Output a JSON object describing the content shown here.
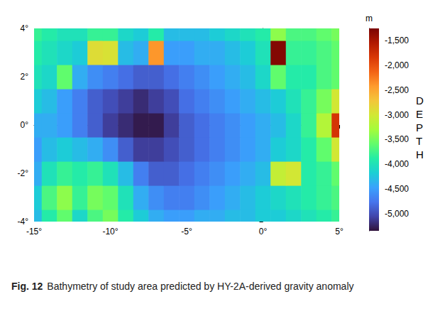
{
  "chart_data": {
    "type": "heatmap",
    "grid": false,
    "x": [
      -15,
      -14,
      -13,
      -12,
      -11,
      -10,
      -9,
      -8,
      -7,
      -6,
      -5,
      -4,
      -3,
      -2,
      -1,
      0,
      1,
      2,
      3,
      4,
      5
    ],
    "y": [
      -4,
      -3,
      -2,
      -1,
      0,
      1,
      2,
      3,
      4
    ],
    "depth": [
      [
        -4300,
        -3900,
        -3600,
        -4100,
        -3700,
        -3500,
        -3900,
        -4200,
        -4400,
        -4500,
        -4500,
        -4400,
        -4400,
        -4300,
        -4300,
        -4200,
        -4200,
        -4100,
        -4000,
        -3900,
        -3800
      ],
      [
        -4200,
        -3700,
        -3400,
        -3800,
        -3500,
        -3600,
        -4000,
        -4400,
        -4600,
        -4700,
        -4700,
        -4600,
        -4500,
        -4400,
        -4300,
        -4200,
        -4100,
        -4000,
        -3900,
        -3800,
        -3700
      ],
      [
        -4400,
        -4000,
        -3800,
        -3900,
        -3800,
        -4000,
        -4300,
        -4700,
        -4900,
        -4900,
        -4800,
        -4700,
        -4600,
        -4500,
        -4400,
        -4300,
        -3100,
        -3000,
        -3900,
        -3800,
        -3600
      ],
      [
        -4500,
        -4300,
        -4200,
        -4300,
        -4400,
        -4600,
        -4900,
        -5100,
        -5100,
        -5000,
        -4900,
        -4800,
        -4700,
        -4600,
        -4500,
        -4400,
        -4200,
        -4100,
        -3900,
        -3600,
        -3000
      ],
      [
        -4400,
        -4400,
        -4500,
        -4700,
        -4900,
        -5100,
        -5200,
        -5300,
        -5300,
        -5100,
        -4900,
        -4800,
        -4700,
        -4600,
        -4500,
        -4400,
        -4300,
        -4100,
        -3800,
        -3200,
        -1800
      ],
      [
        -4200,
        -4300,
        -4500,
        -4700,
        -4900,
        -5000,
        -5100,
        -5200,
        -5100,
        -5000,
        -4800,
        -4700,
        -4600,
        -4500,
        -4400,
        -4300,
        -4200,
        -4000,
        -3800,
        -3500,
        -3000
      ],
      [
        -4000,
        -4100,
        -3600,
        -4400,
        -4600,
        -4700,
        -4800,
        -4900,
        -4900,
        -4800,
        -4700,
        -4600,
        -4500,
        -4400,
        -4300,
        -4100,
        -3600,
        -3900,
        -3900,
        -3700,
        -3600
      ],
      [
        -3900,
        -4000,
        -4100,
        -4200,
        -2900,
        -2950,
        -4300,
        -4400,
        -2400,
        -4500,
        -4500,
        -4400,
        -4400,
        -4300,
        -4200,
        -4000,
        -1300,
        -3800,
        -3800,
        -3700,
        -3600
      ],
      [
        -3800,
        -3900,
        -4000,
        -4000,
        -3800,
        -3800,
        -4100,
        -4200,
        -3900,
        -4300,
        -4300,
        -4300,
        -4200,
        -4100,
        -4000,
        -3900,
        -3400,
        -3700,
        -3700,
        -3600,
        -3500
      ]
    ],
    "xlim": [
      -15,
      5
    ],
    "xticks": [
      {
        "value": -15,
        "label": "-15°"
      },
      {
        "value": -10,
        "label": "-10°"
      },
      {
        "value": -5,
        "label": "-5°"
      },
      {
        "value": 0,
        "label": "0°"
      },
      {
        "value": 5,
        "label": "5°"
      }
    ],
    "ylim": [
      -4,
      4
    ],
    "yticks": [
      {
        "value": -4,
        "label": "-4°"
      },
      {
        "value": -2,
        "label": "-2°"
      },
      {
        "value": 0,
        "label": "0°"
      },
      {
        "value": 2,
        "label": "2°"
      },
      {
        "value": 4,
        "label": "4°"
      }
    ],
    "colorbar": {
      "unit": "m",
      "title": "DEPTH",
      "range": [
        -5350,
        -1250
      ],
      "ticks": [
        -5000,
        -4500,
        -4000,
        -3500,
        -3000,
        -2500,
        -2000,
        -1500
      ]
    },
    "caption": {
      "label": "Fig. 12",
      "text": "Bathymetry of study area predicted by HY-2A-derived gravity anomaly"
    }
  }
}
